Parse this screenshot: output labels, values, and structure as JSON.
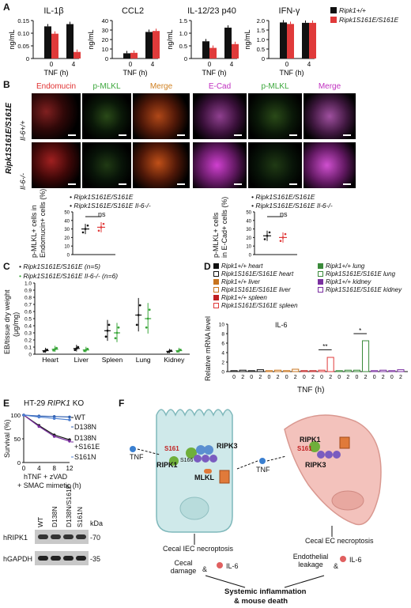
{
  "panel_labels": {
    "A": "A",
    "B": "B",
    "C": "C",
    "D": "D",
    "E": "E",
    "F": "F"
  },
  "panelA": {
    "ylabel": "ng/mL",
    "xlabel": "TNF (h)",
    "legend": [
      {
        "name": "Ripk1+/+",
        "color": "#111111"
      },
      {
        "name": "Ripk1S161E/S161E",
        "color": "#e03a3a"
      }
    ],
    "charts": [
      {
        "title": "IL-1β",
        "ticks": [
          "0",
          "0.05",
          "0.10",
          "0.15"
        ],
        "ymax": 0.15,
        "wt": [
          0.127,
          0.136
        ],
        "mut": [
          0.098,
          0.026
        ]
      },
      {
        "title": "CCL2",
        "ticks": [
          "0",
          "10",
          "20",
          "30",
          "40"
        ],
        "ymax": 40,
        "wt": [
          5.5,
          28
        ],
        "mut": [
          6,
          29
        ]
      },
      {
        "title": "IL-12/23 p40",
        "ticks": [
          "0",
          "0.5",
          "1.0",
          "1.5"
        ],
        "ymax": 1.5,
        "wt": [
          0.68,
          1.22
        ],
        "mut": [
          0.42,
          0.57
        ]
      },
      {
        "title": "IFN-γ",
        "ticks": [
          "0",
          "0.5",
          "1.0",
          "1.5",
          "2.0"
        ],
        "ymax": 2.0,
        "wt": [
          1.9,
          1.88
        ],
        "mut": [
          1.82,
          1.88
        ]
      }
    ],
    "x_ticks": [
      "0",
      "4"
    ]
  },
  "panelB": {
    "row_genotype": "Ripk1S161E/S161E",
    "rows": [
      "Il-6+/+",
      "Il-6-/-"
    ],
    "col_labels": [
      "Endomucin",
      "p-MLKL",
      "Merge",
      "E-Cad",
      "p-MLKL",
      "Merge"
    ],
    "quant": [
      {
        "ylabel1": "p-MLKL+ cells in",
        "ylabel2": "Endomucin+ cells (%)",
        "ns": "ns",
        "ticks": [
          "0",
          "10",
          "20",
          "30",
          "40",
          "50"
        ],
        "legend": [
          "Ripk1S161E/S161E",
          "Ripk1S161E/S161E Il-6-/-"
        ],
        "values": [
          30,
          32
        ]
      },
      {
        "ylabel1": "p-MLKL+ cells",
        "ylabel2": "in E-Cad+ cells (%)",
        "ns": "ns",
        "ticks": [
          "0",
          "10",
          "20",
          "30",
          "40",
          "50"
        ],
        "legend": [
          "Ripk1S161E/S161E",
          "Ripk1S161E/S161E Il-6-/-"
        ],
        "values": [
          22,
          20
        ]
      }
    ]
  },
  "panelC": {
    "legend": [
      "Ripk1S161E/S161E (n=5)",
      "Ripk1S161E/S161E Il-6-/- (n=6)"
    ],
    "ylabel1": "EB/tissue dry weight",
    "ylabel2": "(μg/mg)",
    "ticks": [
      "0",
      "0.1",
      "0.2",
      "0.3",
      "0.4",
      "0.5",
      "0.6",
      "0.7",
      "0.8",
      "0.9",
      "1.0"
    ],
    "categories": [
      "Heart",
      "Liver",
      "Spleen",
      "Lung",
      "Kidney"
    ],
    "series": [
      {
        "name": "Ripk1S161E/S161E",
        "color": "#111111",
        "values": [
          0.05,
          0.08,
          0.33,
          0.55,
          0.04
        ]
      },
      {
        "name": "Ripk1S161E/S161E Il-6-/-",
        "color": "#3aa63a",
        "values": [
          0.07,
          0.06,
          0.3,
          0.5,
          0.05
        ]
      }
    ]
  },
  "panelD": {
    "legend": [
      {
        "name": "Ripk1+/+ heart",
        "color": "#111111",
        "fill": true
      },
      {
        "name": "Ripk1S161E/S161E heart",
        "color": "#111111",
        "fill": false
      },
      {
        "name": "Ripk1+/+ liver",
        "color": "#c8741e",
        "fill": true
      },
      {
        "name": "Ripk1S161E/S161E liver",
        "color": "#c8741e",
        "fill": false
      },
      {
        "name": "Ripk1+/+ spleen",
        "color": "#c02020",
        "fill": true
      },
      {
        "name": "Ripk1S161E/S161E spleen",
        "color": "#e03a3a",
        "fill": false
      },
      {
        "name": "Ripk1+/+ lung",
        "color": "#3a8a3a",
        "fill": true
      },
      {
        "name": "Ripk1S161E/S161E lung",
        "color": "#3a8a3a",
        "fill": false
      },
      {
        "name": "Ripk1+/+ kidney",
        "color": "#7a2fa0",
        "fill": true
      },
      {
        "name": "Ripk1S161E/S161E kidney",
        "color": "#7a2fa0",
        "fill": false
      }
    ],
    "ylabel": "Relative mRNA level",
    "title": "IL-6",
    "ticks": [
      "0",
      "2",
      "4",
      "6",
      "8",
      "10"
    ],
    "x_tick_pairs": [
      "0",
      "2",
      "0",
      "2",
      "0",
      "2",
      "0",
      "2",
      "0",
      "2",
      "0",
      "2",
      "0",
      "2",
      "0",
      "2",
      "0",
      "2",
      "0",
      "2"
    ],
    "xlabel": "TNF (h)",
    "sig": [
      "**",
      "*"
    ],
    "values": [
      0.2,
      0.3,
      0.2,
      0.4,
      0.2,
      0.3,
      0.2,
      0.5,
      0.2,
      0.2,
      0.3,
      3.0,
      0.2,
      0.3,
      0.3,
      6.5,
      0.2,
      0.3,
      0.2,
      0.4
    ]
  },
  "panelE": {
    "title_prefix": "HT-29 ",
    "title_gene": "RIPK1",
    "title_suffix": " KO",
    "ylabel": "Survival (%)",
    "ticks": [
      "0",
      "50",
      "100"
    ],
    "xticks": [
      "0",
      "4",
      "8",
      "12"
    ],
    "xlabel1": "hTNF + zVAD",
    "xlabel2": "+ SMAC mimetic (h)",
    "series": [
      {
        "name": "WT",
        "color": "#111111",
        "values": [
          100,
          78,
          58,
          48
        ]
      },
      {
        "name": "D138N",
        "color": "#2f5fb0",
        "values": [
          100,
          98,
          97,
          96
        ]
      },
      {
        "name": "D138N +S161E",
        "color": "#7a2fa0",
        "values": [
          100,
          76,
          55,
          45
        ]
      },
      {
        "name": "S161N",
        "color": "#4d7fd0",
        "values": [
          100,
          96,
          93,
          90
        ]
      }
    ],
    "legend_labels": [
      "WT",
      "D138N",
      "D138N",
      "+S161E",
      "S161N"
    ],
    "blot_lanes": [
      "WT",
      "D138N",
      "D138N/S161E",
      "S161N"
    ],
    "blot_rows": [
      "hRIPK1",
      "hGAPDH"
    ],
    "kda": "kDa",
    "kda_marks": [
      "-70",
      "-35"
    ]
  },
  "panelF": {
    "tnf": "TNF",
    "tnf2": "TNF",
    "ripk1": "RIPK1",
    "ripk3": "RIPK3",
    "mlkl": "MLKL",
    "s161": "S161",
    "s166": "S166",
    "p": "P",
    "ripk1_ec": "RIPK1",
    "ripk3_ec": "RIPK3",
    "s161_ec": "S161",
    "iec_label": "Cecal IEC necroptosis",
    "ec_label": "Cecal EC necroptosis",
    "damage": "Cecal damage",
    "il6": "IL-6",
    "leakage": "Endothelial leakage",
    "il6b": "IL-6",
    "amp1": "&",
    "amp2": "&",
    "outcome1": "Systemic inflammation",
    "outcome2": "& mouse death"
  }
}
